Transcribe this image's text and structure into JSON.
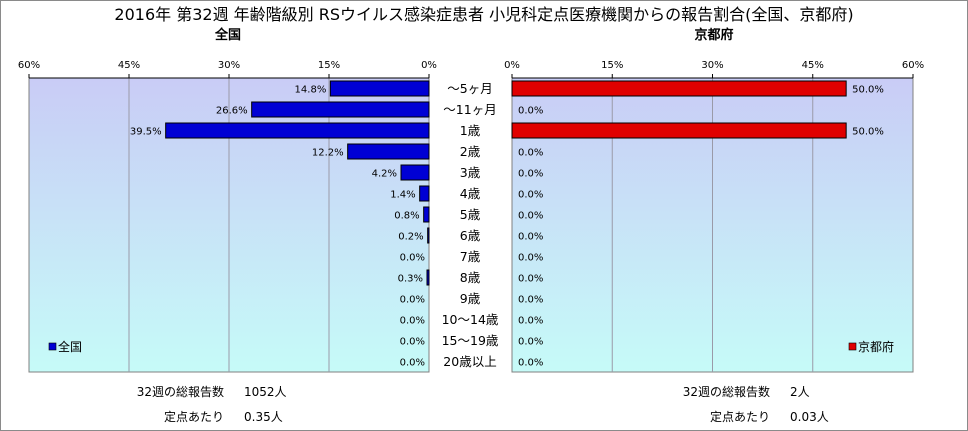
{
  "chart_data": [
    {
      "type": "bar",
      "orientation": "horizontal",
      "direction": "right-to-left",
      "title": "2016年 第32週 年齢階級別 RSウイルス感染症患者 小児科定点医療機関からの報告割合(全国、京都府)",
      "subtitle": "全国",
      "categories": [
        "～5ヶ月",
        "～11ヶ月",
        "1歳",
        "2歳",
        "3歳",
        "4歳",
        "5歳",
        "6歳",
        "7歳",
        "8歳",
        "9歳",
        "10～14歳",
        "15～19歳",
        "20歳以上"
      ],
      "series": [
        {
          "name": "全国",
          "color": "#0000d4",
          "values": [
            14.8,
            26.6,
            39.5,
            12.2,
            4.2,
            1.4,
            0.8,
            0.2,
            0.0,
            0.3,
            0.0,
            0.0,
            0.0,
            0.0
          ],
          "labels": [
            "14.8%",
            "26.6%",
            "39.5%",
            "12.2%",
            "4.2%",
            "1.4%",
            "0.8%",
            "0.2%",
            "0.0%",
            "0.3%",
            "0.0%",
            "0.0%",
            "0.0%",
            "0.0%"
          ]
        }
      ],
      "xlim": [
        0,
        60
      ],
      "ticks": [
        "60%",
        "45%",
        "30%",
        "15%",
        "0%"
      ],
      "grid": true,
      "legend": "bottom-left",
      "plot_background": "gradient lavender to light cyan"
    },
    {
      "type": "bar",
      "orientation": "horizontal",
      "subtitle": "京都府",
      "categories": [
        "～5ヶ月",
        "～11ヶ月",
        "1歳",
        "2歳",
        "3歳",
        "4歳",
        "5歳",
        "6歳",
        "7歳",
        "8歳",
        "9歳",
        "10～14歳",
        "15～19歳",
        "20歳以上"
      ],
      "series": [
        {
          "name": "京都府",
          "color": "#e00000",
          "values": [
            50.0,
            0.0,
            50.0,
            0.0,
            0.0,
            0.0,
            0.0,
            0.0,
            0.0,
            0.0,
            0.0,
            0.0,
            0.0,
            0.0
          ],
          "labels": [
            "50.0%",
            "0.0%",
            "50.0%",
            "0.0%",
            "0.0%",
            "0.0%",
            "0.0%",
            "0.0%",
            "0.0%",
            "0.0%",
            "0.0%",
            "0.0%",
            "0.0%",
            "0.0%"
          ]
        }
      ],
      "xlim": [
        0,
        60
      ],
      "ticks": [
        "0%",
        "15%",
        "30%",
        "45%",
        "60%"
      ],
      "grid": true,
      "legend": "bottom-right",
      "plot_background": "gradient lavender to light cyan"
    }
  ],
  "footer": {
    "left": {
      "total_label": "32週の総報告数",
      "total_value": "1052人",
      "per_label": "定点あたり",
      "per_value": "0.35人"
    },
    "right": {
      "total_label": "32週の総報告数",
      "total_value": "2人",
      "per_label": "定点あたり",
      "per_value": "0.03人"
    }
  }
}
